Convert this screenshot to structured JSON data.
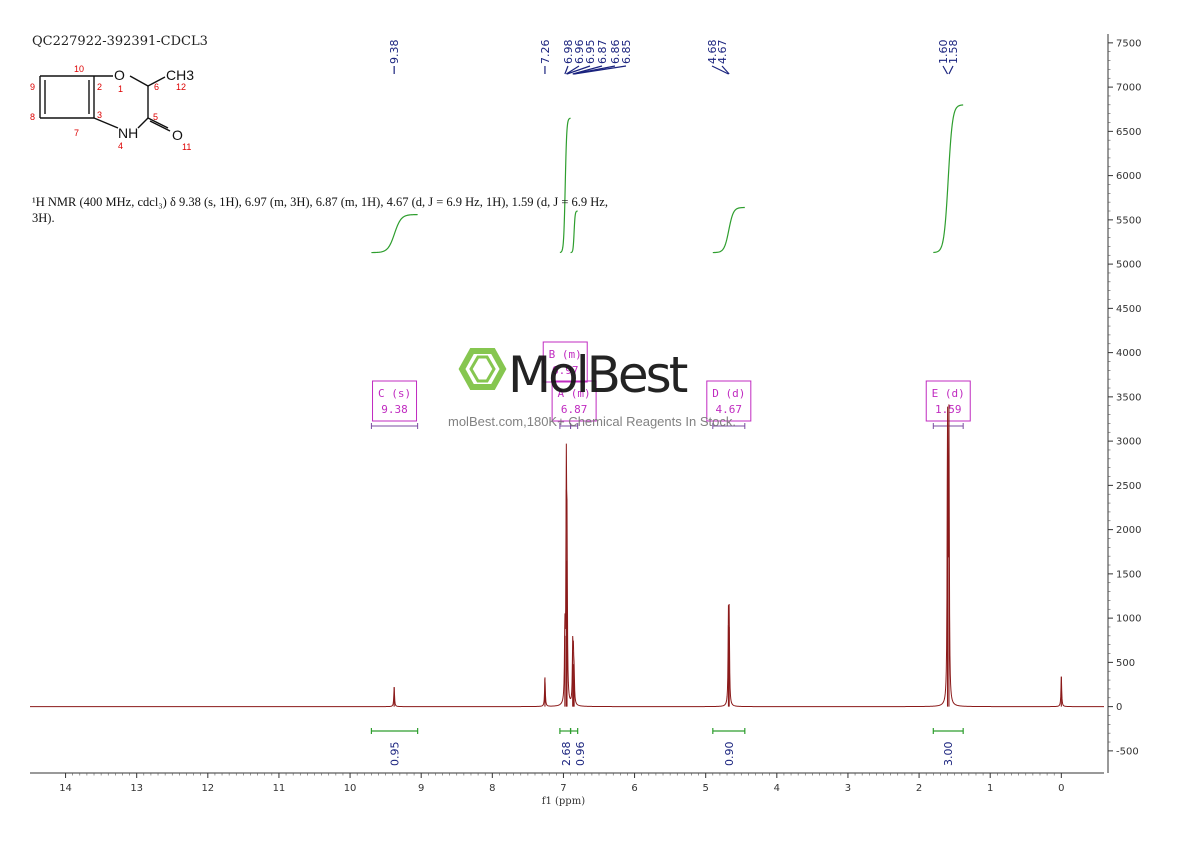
{
  "header": {
    "sample_id": "QC227922-392391-CDCL3"
  },
  "summary_text": "¹H NMR (400 MHz, cdcl₃) δ 9.38 (s, 1H), 6.97 (m, 3H), 6.87 (m, 1H), 4.67 (d, J = 6.9 Hz, 1H), 1.59 (d, J = 6.9 Hz, 3H).",
  "structure": {
    "atoms": [
      "O",
      "CH3",
      "NH",
      "O"
    ],
    "atom_numbers": [
      "10",
      "1",
      "2",
      "6",
      "12",
      "9",
      "8",
      "3",
      "5",
      "7",
      "4",
      "11"
    ]
  },
  "watermark": {
    "brand": "MolBest",
    "tagline": "molBest.com,180K+ Chemical Reagents In Stock."
  },
  "colors": {
    "spectrum": "#8b1a1a",
    "integral": "#2e9e2e",
    "peak_label": "#1a237e",
    "multiplet_box": "#c02bc0",
    "watermark_green": "#7cc242"
  },
  "chart_data": {
    "type": "line",
    "xlabel": "f1 (ppm)",
    "xlim": [
      14.5,
      -0.6
    ],
    "x_reversed": true,
    "ylim": [
      -750,
      7600
    ],
    "x_ticks": [
      "14",
      "13",
      "12",
      "11",
      "10",
      "9",
      "8",
      "7",
      "6",
      "5",
      "4",
      "3",
      "2",
      "1",
      "0"
    ],
    "y_ticks": [
      "7500",
      "7000",
      "6500",
      "6000",
      "5500",
      "5000",
      "4500",
      "4000",
      "3500",
      "3000",
      "2500",
      "2000",
      "1500",
      "1000",
      "500",
      "0",
      "-500"
    ],
    "peaks": [
      {
        "shift": 9.38,
        "height": 220
      },
      {
        "shift": 7.26,
        "height": 330
      },
      {
        "shift": 6.98,
        "height": 800
      },
      {
        "shift": 6.96,
        "height": 2450
      },
      {
        "shift": 6.95,
        "height": 1650
      },
      {
        "shift": 6.87,
        "height": 620
      },
      {
        "shift": 6.86,
        "height": 480
      },
      {
        "shift": 6.85,
        "height": 300
      },
      {
        "shift": 4.68,
        "height": 920
      },
      {
        "shift": 4.67,
        "height": 900
      },
      {
        "shift": 1.6,
        "height": 3200
      },
      {
        "shift": 1.58,
        "height": 3150
      },
      {
        "shift": 0.0,
        "height": 340
      }
    ],
    "peak_labels": [
      "9.38",
      "7.26",
      "6.98",
      "6.96",
      "6.95",
      "6.87",
      "6.86",
      "6.85",
      "4.68",
      "4.67",
      "1.60",
      "1.58"
    ],
    "integrals": [
      {
        "from": 9.7,
        "to": 9.05,
        "value": "0.95"
      },
      {
        "from": 7.05,
        "to": 6.9,
        "value": "2.68"
      },
      {
        "from": 6.9,
        "to": 6.8,
        "value": "0.96"
      },
      {
        "from": 4.9,
        "to": 4.45,
        "value": "0.90"
      },
      {
        "from": 1.8,
        "to": 1.38,
        "value": "3.00"
      }
    ],
    "multiplets": [
      {
        "name": "C (s)",
        "shift": "9.38",
        "range": [
          9.7,
          9.05
        ]
      },
      {
        "name": "B (m)",
        "shift": "6.97",
        "range": [
          7.05,
          6.9
        ]
      },
      {
        "name": "A (m)",
        "shift": "6.87",
        "range": [
          6.9,
          6.8
        ]
      },
      {
        "name": "D (d)",
        "shift": "4.67",
        "range": [
          4.9,
          4.45
        ]
      },
      {
        "name": "E (d)",
        "shift": "1.59",
        "range": [
          1.8,
          1.38
        ]
      }
    ]
  }
}
